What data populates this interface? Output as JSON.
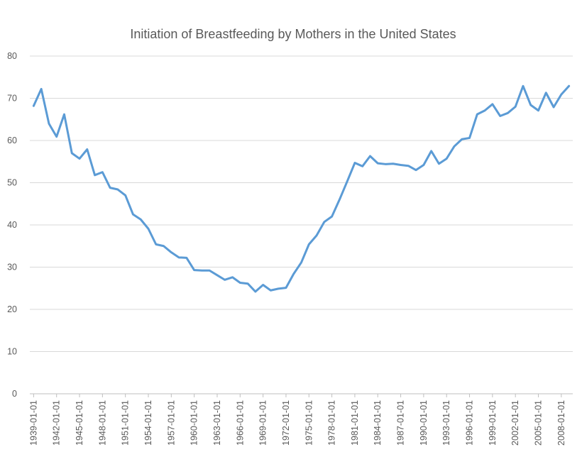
{
  "colors": {
    "series": "#5b9bd5",
    "grid": "#d9d9d9",
    "text": "#595959"
  },
  "chart_data": {
    "type": "line",
    "title": "Initiation of Breastfeeding by Mothers in the United States",
    "xlabel": "",
    "ylabel": "",
    "ylim": [
      0,
      80
    ],
    "yticks": [
      0,
      10,
      20,
      30,
      40,
      50,
      60,
      70,
      80
    ],
    "grid": "horizontal",
    "legend": "none",
    "x_tick_labels": [
      "1939-01-01",
      "1942-01-01",
      "1945-01-01",
      "1948-01-01",
      "1951-01-01",
      "1954-01-01",
      "1957-01-01",
      "1960-01-01",
      "1963-01-01",
      "1966-01-01",
      "1969-01-01",
      "1972-01-01",
      "1975-01-01",
      "1978-01-01",
      "1981-01-01",
      "1984-01-01",
      "1987-01-01",
      "1990-01-01",
      "1993-01-01",
      "1996-01-01",
      "1999-01-01",
      "2002-01-01",
      "2005-01-01",
      "2008-01-01"
    ],
    "x": [
      "1939-01-01",
      "1940-01-01",
      "1941-01-01",
      "1942-01-01",
      "1943-01-01",
      "1944-01-01",
      "1945-01-01",
      "1946-01-01",
      "1947-01-01",
      "1948-01-01",
      "1949-01-01",
      "1950-01-01",
      "1951-01-01",
      "1952-01-01",
      "1953-01-01",
      "1954-01-01",
      "1955-01-01",
      "1956-01-01",
      "1957-01-01",
      "1958-01-01",
      "1959-01-01",
      "1960-01-01",
      "1961-01-01",
      "1962-01-01",
      "1963-01-01",
      "1964-01-01",
      "1965-01-01",
      "1966-01-01",
      "1967-01-01",
      "1968-01-01",
      "1969-01-01",
      "1970-01-01",
      "1971-01-01",
      "1972-01-01",
      "1973-01-01",
      "1974-01-01",
      "1975-01-01",
      "1976-01-01",
      "1977-01-01",
      "1978-01-01",
      "1979-01-01",
      "1980-01-01",
      "1981-01-01",
      "1982-01-01",
      "1983-01-01",
      "1984-01-01",
      "1985-01-01",
      "1986-01-01",
      "1987-01-01",
      "1988-01-01",
      "1989-01-01",
      "1990-01-01",
      "1991-01-01",
      "1992-01-01",
      "1993-01-01",
      "1994-01-01",
      "1995-01-01",
      "1996-01-01",
      "1997-01-01",
      "1998-01-01",
      "1999-01-01",
      "2000-01-01",
      "2001-01-01",
      "2002-01-01",
      "2003-01-01",
      "2004-01-01",
      "2005-01-01",
      "2006-01-01",
      "2007-01-01",
      "2008-01-01",
      "2009-01-01"
    ],
    "series": [
      {
        "values": [
          68.2,
          72.2,
          64.0,
          60.9,
          66.2,
          57.0,
          55.7,
          57.9,
          51.8,
          52.5,
          48.8,
          48.4,
          47.0,
          42.5,
          41.3,
          39.1,
          35.4,
          35.0,
          33.5,
          32.3,
          32.2,
          29.3,
          29.2,
          29.2,
          28.1,
          27.0,
          27.6,
          26.3,
          26.1,
          24.2,
          25.8,
          24.5,
          24.9,
          25.1,
          28.4,
          31.1,
          35.4,
          37.5,
          40.7,
          42.0,
          46.0,
          50.3,
          54.7,
          53.9,
          56.3,
          54.6,
          54.4,
          54.5,
          54.2,
          54.0,
          53.0,
          54.2,
          57.5,
          54.5,
          55.7,
          58.6,
          60.3,
          60.6,
          66.2,
          67.1,
          68.6,
          65.8,
          66.5,
          68.0,
          72.9,
          68.4,
          67.1,
          71.3,
          67.9,
          70.9,
          72.9
        ]
      }
    ]
  }
}
